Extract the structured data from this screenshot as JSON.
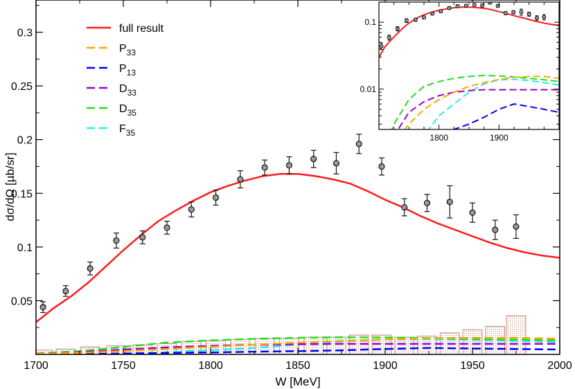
{
  "chart_data": {
    "type": "line",
    "xlabel": "W [MeV]",
    "ylabel": "dσ/dΩ [µb/sr]",
    "xlim": [
      1700,
      2000
    ],
    "ylim": [
      0,
      0.33
    ],
    "grid": false,
    "legend_position": "top-left",
    "x_ticks": [
      1700,
      1750,
      1800,
      1850,
      1900,
      1950,
      2000
    ],
    "y_ticks": [
      0.05,
      0.1,
      0.15,
      0.2,
      0.25,
      0.3
    ],
    "x_tick_labels": [
      "1700",
      "1750",
      "1800",
      "1850",
      "1900",
      "1950",
      "2000"
    ],
    "y_tick_labels": [
      "0.05",
      "0.1",
      "0.15",
      "0.2",
      "0.25",
      "0.3"
    ],
    "colors": {
      "full": "#ff1a1a",
      "P33": "#ffa500",
      "P13": "#0000ff",
      "D33": "#9900cc",
      "D35": "#22dd22",
      "F35": "#22eeee",
      "points": "#111111",
      "bars": "#c9867c"
    },
    "series": [
      {
        "name": "full result",
        "base": "full result",
        "sub": "",
        "key": "full",
        "dashed": false,
        "x": [
          1700,
          1710,
          1720,
          1730,
          1740,
          1750,
          1760,
          1770,
          1780,
          1790,
          1800,
          1810,
          1820,
          1830,
          1840,
          1850,
          1860,
          1870,
          1880,
          1890,
          1900,
          1910,
          1920,
          1930,
          1940,
          1950,
          1960,
          1970,
          1980,
          1990,
          2000
        ],
        "y": [
          0.03,
          0.043,
          0.054,
          0.067,
          0.082,
          0.097,
          0.111,
          0.124,
          0.134,
          0.143,
          0.151,
          0.157,
          0.162,
          0.166,
          0.168,
          0.168,
          0.166,
          0.163,
          0.159,
          0.152,
          0.144,
          0.137,
          0.129,
          0.122,
          0.116,
          0.11,
          0.104,
          0.099,
          0.095,
          0.092,
          0.09
        ]
      },
      {
        "name": "P33",
        "base": "P",
        "sub": "33",
        "key": "P33",
        "dashed": true,
        "x": [
          1700,
          1725,
          1750,
          1775,
          1800,
          1825,
          1850,
          1875,
          1900,
          1925,
          1950,
          1975,
          2000
        ],
        "y": [
          0.0005,
          0.0015,
          0.003,
          0.005,
          0.007,
          0.009,
          0.011,
          0.0125,
          0.014,
          0.015,
          0.0155,
          0.0155,
          0.0145
        ]
      },
      {
        "name": "P13",
        "base": "P",
        "sub": "13",
        "key": "P13",
        "dashed": true,
        "x": [
          1700,
          1725,
          1750,
          1775,
          1800,
          1825,
          1850,
          1875,
          1900,
          1925,
          1950,
          1975,
          2000
        ],
        "y": [
          0.0,
          0.0003,
          0.0008,
          0.0013,
          0.0018,
          0.0025,
          0.003,
          0.0038,
          0.005,
          0.006,
          0.0055,
          0.005,
          0.0045
        ]
      },
      {
        "name": "D33",
        "base": "D",
        "sub": "33",
        "key": "D33",
        "dashed": true,
        "x": [
          1700,
          1725,
          1750,
          1775,
          1800,
          1825,
          1850,
          1875,
          1900,
          1925,
          1950,
          1975,
          2000
        ],
        "y": [
          0.0005,
          0.002,
          0.0045,
          0.0065,
          0.008,
          0.009,
          0.0095,
          0.0098,
          0.0098,
          0.0098,
          0.0098,
          0.0098,
          0.0098
        ]
      },
      {
        "name": "D35",
        "base": "D",
        "sub": "35",
        "key": "D35",
        "dashed": true,
        "x": [
          1700,
          1725,
          1750,
          1775,
          1800,
          1825,
          1850,
          1875,
          1900,
          1925,
          1950,
          1975,
          2000
        ],
        "y": [
          0.0008,
          0.003,
          0.007,
          0.011,
          0.013,
          0.0145,
          0.0155,
          0.016,
          0.0158,
          0.0152,
          0.0145,
          0.0138,
          0.013
        ]
      },
      {
        "name": "F35",
        "base": "F",
        "sub": "35",
        "key": "F35",
        "dashed": true,
        "x": [
          1700,
          1725,
          1750,
          1775,
          1800,
          1825,
          1850,
          1875,
          1900,
          1925,
          1950,
          1975,
          2000
        ],
        "y": [
          0.0,
          0.0002,
          0.0008,
          0.002,
          0.004,
          0.006,
          0.009,
          0.012,
          0.0138,
          0.014,
          0.0135,
          0.0125,
          0.0115
        ]
      }
    ],
    "points": {
      "x": [
        1704,
        1717,
        1731,
        1746,
        1761,
        1775,
        1789,
        1803,
        1817,
        1831,
        1845,
        1859,
        1872,
        1885,
        1898,
        1911,
        1924,
        1937,
        1950,
        1963,
        1975
      ],
      "y": [
        0.044,
        0.059,
        0.08,
        0.106,
        0.109,
        0.118,
        0.135,
        0.146,
        0.163,
        0.174,
        0.176,
        0.182,
        0.178,
        0.196,
        0.175,
        0.137,
        0.141,
        0.142,
        0.132,
        0.116,
        0.119
      ],
      "err": [
        0.005,
        0.005,
        0.006,
        0.007,
        0.006,
        0.006,
        0.007,
        0.007,
        0.008,
        0.007,
        0.008,
        0.008,
        0.01,
        0.009,
        0.008,
        0.008,
        0.008,
        0.015,
        0.009,
        0.009,
        0.011
      ]
    },
    "sys_bars": {
      "x": [
        1704,
        1717,
        1731,
        1746,
        1761,
        1775,
        1789,
        1803,
        1817,
        1831,
        1845,
        1859,
        1872,
        1885,
        1898,
        1911,
        1924,
        1937,
        1950,
        1963,
        1975
      ],
      "y": [
        0.004,
        0.005,
        0.007,
        0.008,
        0.009,
        0.01,
        0.012,
        0.013,
        0.014,
        0.015,
        0.015,
        0.016,
        0.016,
        0.018,
        0.018,
        0.016,
        0.017,
        0.02,
        0.023,
        0.026,
        0.036
      ]
    },
    "inset": {
      "scale": "log",
      "xlim": [
        1700,
        2000
      ],
      "ylim": [
        0.0025,
        0.2
      ],
      "x_ticks": [
        1800,
        1900
      ],
      "y_ticks": [
        0.01,
        0.1
      ],
      "x_tick_labels": [
        "1800",
        "1900"
      ],
      "y_tick_labels": [
        "0.01",
        "0.1"
      ]
    }
  }
}
